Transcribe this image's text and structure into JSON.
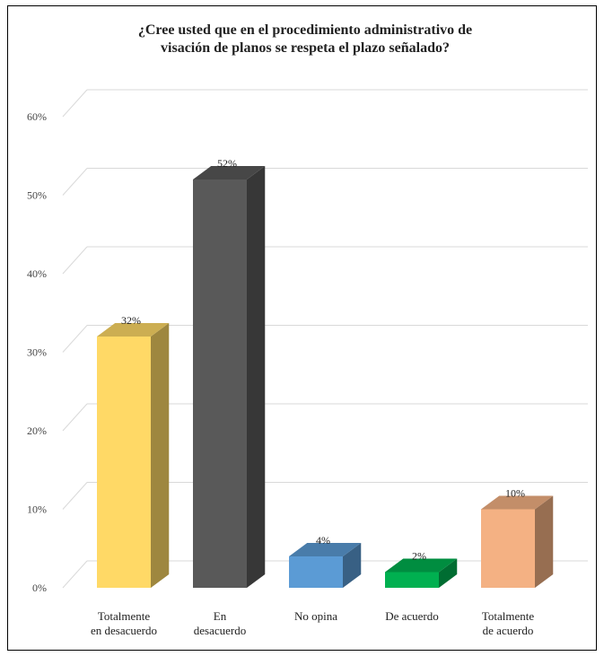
{
  "chart_data": {
    "type": "bar",
    "title_lines": [
      "¿Cree usted que en el procedimiento administrativo de",
      "visación de planos se respeta el plazo señalado?"
    ],
    "categories": [
      [
        "Totalmente",
        "en desacuerdo"
      ],
      [
        "En",
        "desacuerdo"
      ],
      [
        "No opina"
      ],
      [
        "De acuerdo"
      ],
      [
        "Totalmente",
        "de acuerdo"
      ]
    ],
    "values": [
      32,
      52,
      4,
      2,
      10
    ],
    "data_labels": [
      "32%",
      "52%",
      "4%",
      "2%",
      "10%"
    ],
    "colors": [
      "#FFD966",
      "#595959",
      "#5B9BD5",
      "#00B050",
      "#F4B183"
    ],
    "ylim": [
      0,
      60
    ],
    "y_ticks": [
      "0%",
      "10%",
      "20%",
      "30%",
      "40%",
      "50%",
      "60%"
    ],
    "grid": true,
    "three_d": true
  }
}
